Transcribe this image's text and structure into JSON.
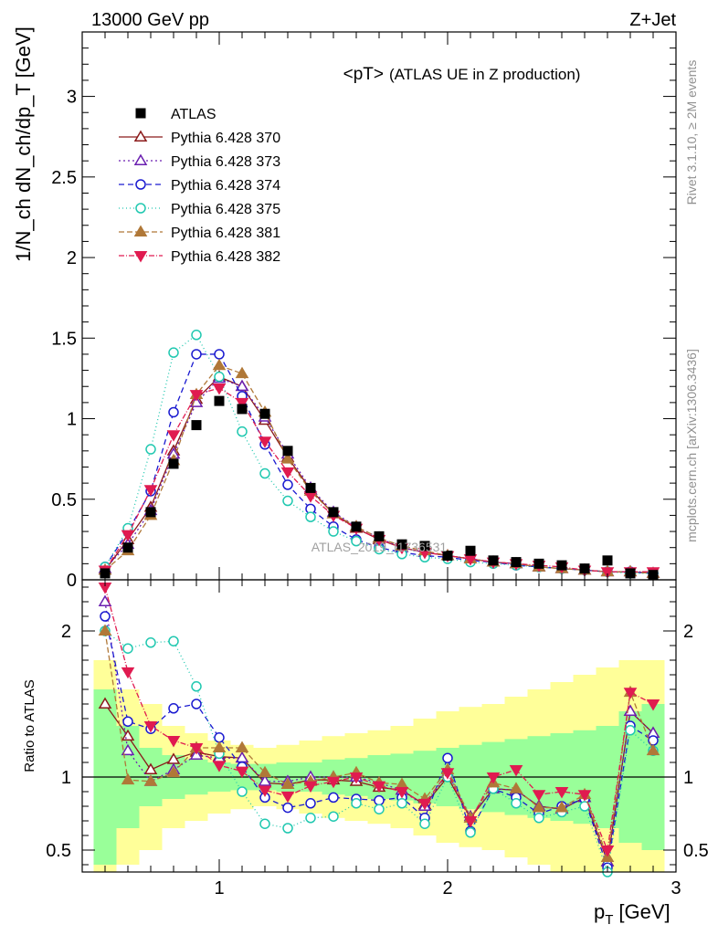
{
  "header": {
    "left": "13000 GeV pp",
    "right": "Z+Jet"
  },
  "side": {
    "top": "Rivet 3.1.10, ≥ 2M events",
    "bottom": "mcplots.cern.ch [arXiv:1306.3436]"
  },
  "chart_data": {
    "type": "scatter",
    "title_main": "<pT>",
    "title_sub": "(ATLAS UE in Z production)",
    "watermark": "ATLAS_2019_I1736531",
    "xlabel": "p",
    "xlabel_sub": "T",
    "xlabel_unit": "[GeV]",
    "ylabel": "1/N_ch dN_ch/dp_T [GeV]",
    "ratio_ylabel": "Ratio to ATLAS",
    "xlim": [
      0.4,
      3.0
    ],
    "ylim": [
      0,
      3.4
    ],
    "ratio_ylim": [
      0.35,
      2.35
    ],
    "x_ticks": [
      1,
      2,
      3
    ],
    "y_ticks": [
      0,
      0.5,
      1,
      1.5,
      2,
      2.5,
      3
    ],
    "y_tick_labels": [
      "0",
      "0.5",
      "1",
      "1.5",
      "2",
      "2.5",
      "3"
    ],
    "ratio_ticks": [
      0.5,
      1,
      2
    ],
    "ratio_tick_labels": [
      "0.5",
      "1",
      "2"
    ],
    "x": [
      0.5,
      0.6,
      0.7,
      0.8,
      0.9,
      1.0,
      1.1,
      1.2,
      1.3,
      1.4,
      1.5,
      1.6,
      1.7,
      1.8,
      1.9,
      2.0,
      2.1,
      2.2,
      2.3,
      2.4,
      2.5,
      2.6,
      2.7,
      2.8,
      2.9
    ],
    "data": {
      "name": "ATLAS",
      "values": [
        0.04,
        0.2,
        0.42,
        0.72,
        0.96,
        1.11,
        1.06,
        1.03,
        0.8,
        0.57,
        0.42,
        0.33,
        0.27,
        0.22,
        0.21,
        0.15,
        0.18,
        0.12,
        0.11,
        0.1,
        0.09,
        0.07,
        0.12,
        0.04,
        0.03
      ]
    },
    "band_outer": [
      0.8,
      0.6,
      0.5,
      0.35,
      0.3,
      0.25,
      0.22,
      0.2,
      0.22,
      0.25,
      0.28,
      0.3,
      0.32,
      0.35,
      0.4,
      0.45,
      0.48,
      0.5,
      0.55,
      0.6,
      0.65,
      0.7,
      0.75,
      0.8,
      0.8
    ],
    "band_inner": [
      0.6,
      0.35,
      0.2,
      0.15,
      0.12,
      0.1,
      0.09,
      0.09,
      0.1,
      0.1,
      0.12,
      0.13,
      0.15,
      0.16,
      0.18,
      0.2,
      0.22,
      0.24,
      0.26,
      0.28,
      0.3,
      0.32,
      0.35,
      0.45,
      0.5
    ],
    "series": [
      {
        "name": "Pythia 6.428 370",
        "color": "#8b1a1a",
        "marker": "triangle-open",
        "dash": "",
        "fill": "none",
        "values": [
          0.06,
          0.25,
          0.45,
          0.8,
          1.12,
          1.26,
          1.2,
          0.99,
          0.76,
          0.56,
          0.41,
          0.32,
          0.25,
          0.2,
          0.17,
          0.15,
          0.13,
          0.11,
          0.1,
          0.08,
          0.07,
          0.06,
          0.05,
          0.05,
          0.04
        ],
        "ratio": [
          1.5,
          1.28,
          1.05,
          1.12,
          1.17,
          1.14,
          1.13,
          0.96,
          0.95,
          0.98,
          0.98,
          0.97,
          0.93,
          0.91,
          0.81,
          1.0,
          0.72,
          0.92,
          0.91,
          0.8,
          0.78,
          0.86,
          0.42,
          1.45,
          1.3
        ]
      },
      {
        "name": "Pythia 6.428 373",
        "color": "#6a1fb0",
        "marker": "triangle-open",
        "dash": "2,3",
        "fill": "none",
        "values": [
          0.07,
          0.22,
          0.43,
          0.78,
          1.1,
          1.25,
          1.2,
          1.01,
          0.78,
          0.57,
          0.42,
          0.33,
          0.26,
          0.2,
          0.17,
          0.15,
          0.13,
          0.11,
          0.1,
          0.08,
          0.07,
          0.06,
          0.05,
          0.05,
          0.04
        ],
        "ratio": [
          2.2,
          1.18,
          0.97,
          1.05,
          1.15,
          1.13,
          1.13,
          0.97,
          0.97,
          1.0,
          1.0,
          1.0,
          0.96,
          0.91,
          0.8,
          1.03,
          0.73,
          0.92,
          0.91,
          0.8,
          0.78,
          0.86,
          0.42,
          1.45,
          1.3
        ]
      },
      {
        "name": "Pythia 6.428 374",
        "color": "#1a1ad0",
        "marker": "circle-open",
        "dash": "6,4",
        "fill": "none",
        "values": [
          0.08,
          0.3,
          0.55,
          1.04,
          1.4,
          1.4,
          1.14,
          0.84,
          0.59,
          0.44,
          0.33,
          0.25,
          0.2,
          0.17,
          0.15,
          0.14,
          0.12,
          0.11,
          0.09,
          0.08,
          0.07,
          0.06,
          0.05,
          0.05,
          0.04
        ],
        "ratio": [
          2.1,
          1.38,
          1.33,
          1.47,
          1.5,
          1.27,
          1.07,
          0.86,
          0.79,
          0.82,
          0.86,
          0.85,
          0.84,
          0.86,
          0.72,
          1.13,
          0.63,
          0.92,
          0.86,
          0.75,
          0.8,
          0.85,
          0.38,
          1.35,
          1.25
        ]
      },
      {
        "name": "Pythia 6.428 375",
        "color": "#20c8b0",
        "marker": "circle-open",
        "dash": "1,3",
        "fill": "none",
        "values": [
          0.08,
          0.32,
          0.81,
          1.41,
          1.52,
          1.26,
          0.92,
          0.66,
          0.49,
          0.39,
          0.3,
          0.24,
          0.19,
          0.16,
          0.14,
          0.13,
          0.11,
          0.1,
          0.09,
          0.08,
          0.07,
          0.06,
          0.05,
          0.04,
          0.04
        ],
        "ratio": [
          2.0,
          1.88,
          1.92,
          1.93,
          1.62,
          1.16,
          0.9,
          0.68,
          0.65,
          0.72,
          0.73,
          0.82,
          0.78,
          0.82,
          0.68,
          1.0,
          0.62,
          0.92,
          0.82,
          0.72,
          0.76,
          0.8,
          0.35,
          1.32,
          1.18
        ]
      },
      {
        "name": "Pythia 6.428 381",
        "color": "#b07838",
        "marker": "triangle-filled",
        "dash": "6,3",
        "fill": "#b07838",
        "values": [
          0.06,
          0.18,
          0.4,
          0.74,
          1.15,
          1.33,
          1.28,
          1.04,
          0.75,
          0.55,
          0.41,
          0.33,
          0.26,
          0.21,
          0.18,
          0.15,
          0.13,
          0.11,
          0.1,
          0.08,
          0.07,
          0.06,
          0.05,
          0.05,
          0.04
        ],
        "ratio": [
          2.0,
          0.98,
          0.97,
          1.03,
          1.2,
          1.2,
          1.2,
          1.03,
          0.95,
          0.97,
          1.0,
          1.03,
          0.96,
          0.95,
          0.85,
          1.05,
          0.72,
          0.96,
          0.92,
          0.79,
          0.79,
          0.88,
          0.45,
          1.58,
          1.18
        ]
      },
      {
        "name": "Pythia 6.428 382",
        "color": "#e01b50",
        "marker": "triangle-down-filled",
        "dash": "6,2,1,2",
        "fill": "#e01b50",
        "values": [
          0.06,
          0.28,
          0.56,
          0.9,
          1.15,
          1.19,
          1.1,
          0.86,
          0.67,
          0.52,
          0.4,
          0.32,
          0.25,
          0.2,
          0.17,
          0.15,
          0.13,
          0.11,
          0.1,
          0.09,
          0.08,
          0.06,
          0.05,
          0.05,
          0.05
        ],
        "ratio": [
          2.3,
          1.72,
          1.35,
          1.25,
          1.2,
          1.08,
          1.04,
          0.91,
          0.87,
          0.94,
          0.97,
          1.0,
          0.94,
          0.9,
          0.82,
          1.03,
          0.7,
          1.0,
          1.05,
          0.88,
          0.9,
          0.88,
          0.5,
          1.58,
          1.5
        ]
      }
    ]
  }
}
